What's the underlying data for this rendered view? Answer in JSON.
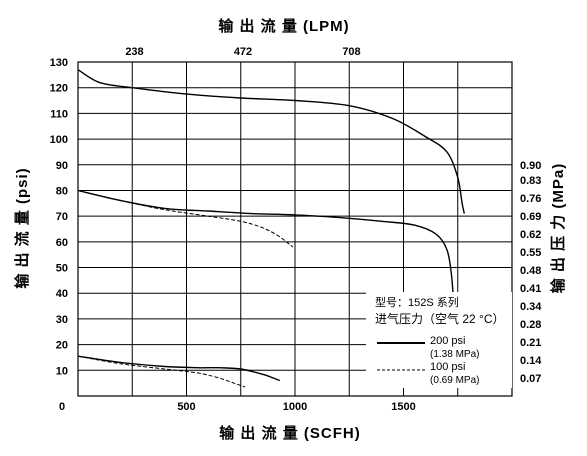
{
  "chart_data": {
    "type": "line",
    "title": "输 出 流 量 (LPM)",
    "xlabel": "输 出 流 量 (SCFH)",
    "ylabel": "输 出 流 量 (psi)",
    "y2label": "输 出 压 力 (MPa)",
    "xlim": [
      0,
      2000
    ],
    "ylim": [
      0,
      130
    ],
    "grid": true,
    "x_ticks": [
      0,
      500,
      1000,
      1500
    ],
    "x_tick_labels": [
      "0",
      "500",
      "1000",
      "1500"
    ],
    "x_top_ticks": [
      500,
      1000,
      1500
    ],
    "x_top_tick_labels": [
      "238",
      "472",
      "708"
    ],
    "y_ticks": [
      10,
      20,
      30,
      40,
      50,
      60,
      70,
      80,
      90,
      100,
      110,
      120,
      130
    ],
    "y_tick_labels": [
      "10",
      "20",
      "30",
      "40",
      "50",
      "60",
      "70",
      "80",
      "90",
      "100",
      "110",
      "120",
      "130"
    ],
    "y2_ticks": [
      7,
      14,
      21,
      28,
      35,
      42,
      49,
      56,
      63,
      70,
      77,
      84,
      90
    ],
    "y2_tick_labels": [
      "0.07",
      "0.14",
      "0.21",
      "0.28",
      "0.34",
      "0.41",
      "0.48",
      "0.55",
      "0.62",
      "0.69",
      "0.76",
      "0.83",
      "0.90"
    ],
    "legend": {
      "placement": "bottom-right",
      "model": "型号：152S 系列",
      "condition": "进气压力（空气 22 °C）",
      "entries": [
        {
          "label": "200 psi",
          "sublabel": "(1.38 MPa)",
          "style": "solid"
        },
        {
          "label": "100 psi",
          "sublabel": "(0.69 MPa)",
          "style": "dashed"
        }
      ]
    },
    "series": [
      {
        "style": "solid",
        "points": [
          [
            0,
            127
          ],
          [
            100,
            122
          ],
          [
            250,
            120
          ],
          [
            500,
            117.5
          ],
          [
            750,
            116
          ],
          [
            1000,
            115
          ],
          [
            1250,
            113
          ],
          [
            1450,
            108
          ],
          [
            1600,
            101
          ],
          [
            1700,
            95
          ],
          [
            1750,
            85
          ],
          [
            1770,
            75
          ],
          [
            1780,
            71
          ]
        ]
      },
      {
        "style": "solid",
        "points": [
          [
            0,
            80
          ],
          [
            200,
            76
          ],
          [
            400,
            73
          ],
          [
            600,
            72
          ],
          [
            800,
            71
          ],
          [
            1000,
            70.5
          ],
          [
            1200,
            69.5
          ],
          [
            1400,
            68
          ],
          [
            1550,
            66.5
          ],
          [
            1650,
            63
          ],
          [
            1700,
            57
          ],
          [
            1720,
            48
          ],
          [
            1730,
            38
          ]
        ]
      },
      {
        "style": "dashed",
        "points": [
          [
            0,
            80
          ],
          [
            200,
            76
          ],
          [
            400,
            72.5
          ],
          [
            600,
            70
          ],
          [
            750,
            68
          ],
          [
            850,
            65.5
          ],
          [
            920,
            62.5
          ],
          [
            960,
            60
          ],
          [
            990,
            58
          ]
        ]
      },
      {
        "style": "solid",
        "points": [
          [
            0,
            15.5
          ],
          [
            200,
            13
          ],
          [
            400,
            11.5
          ],
          [
            550,
            11
          ],
          [
            650,
            11
          ],
          [
            750,
            10.5
          ],
          [
            850,
            8.5
          ],
          [
            900,
            7
          ],
          [
            930,
            6
          ]
        ]
      },
      {
        "style": "dashed",
        "points": [
          [
            0,
            15.5
          ],
          [
            200,
            12.5
          ],
          [
            400,
            10.5
          ],
          [
            550,
            9
          ],
          [
            650,
            7
          ],
          [
            720,
            5
          ],
          [
            770,
            3.5
          ]
        ]
      }
    ]
  }
}
